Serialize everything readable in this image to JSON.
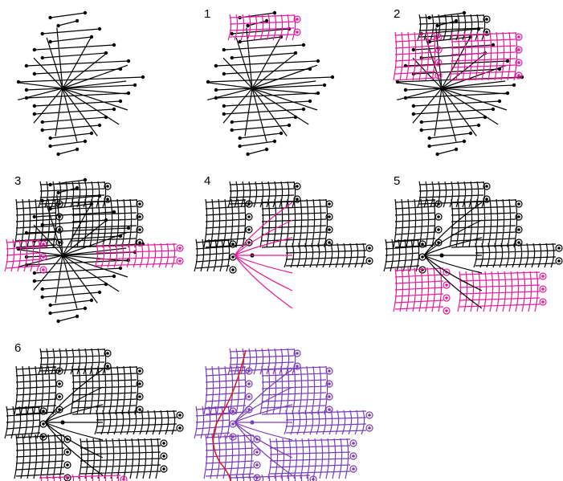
{
  "figure": {
    "colors": {
      "line": "#000000",
      "highlight": "#e6199a",
      "final": "#7a3db8",
      "accent_thread": "#d42020",
      "background": "#ffffff"
    },
    "panels": [
      {
        "id": "base",
        "label": "",
        "stage": 0
      },
      {
        "id": "step-1",
        "label": "1",
        "stage": 1
      },
      {
        "id": "step-2",
        "label": "2",
        "stage": 2
      },
      {
        "id": "step-3",
        "label": "3",
        "stage": 3
      },
      {
        "id": "step-4",
        "label": "4",
        "stage": 4
      },
      {
        "id": "step-5",
        "label": "5",
        "stage": 5
      },
      {
        "id": "step-6",
        "label": "6",
        "stage": 6
      },
      {
        "id": "final",
        "label": "",
        "stage": 7
      }
    ]
  }
}
